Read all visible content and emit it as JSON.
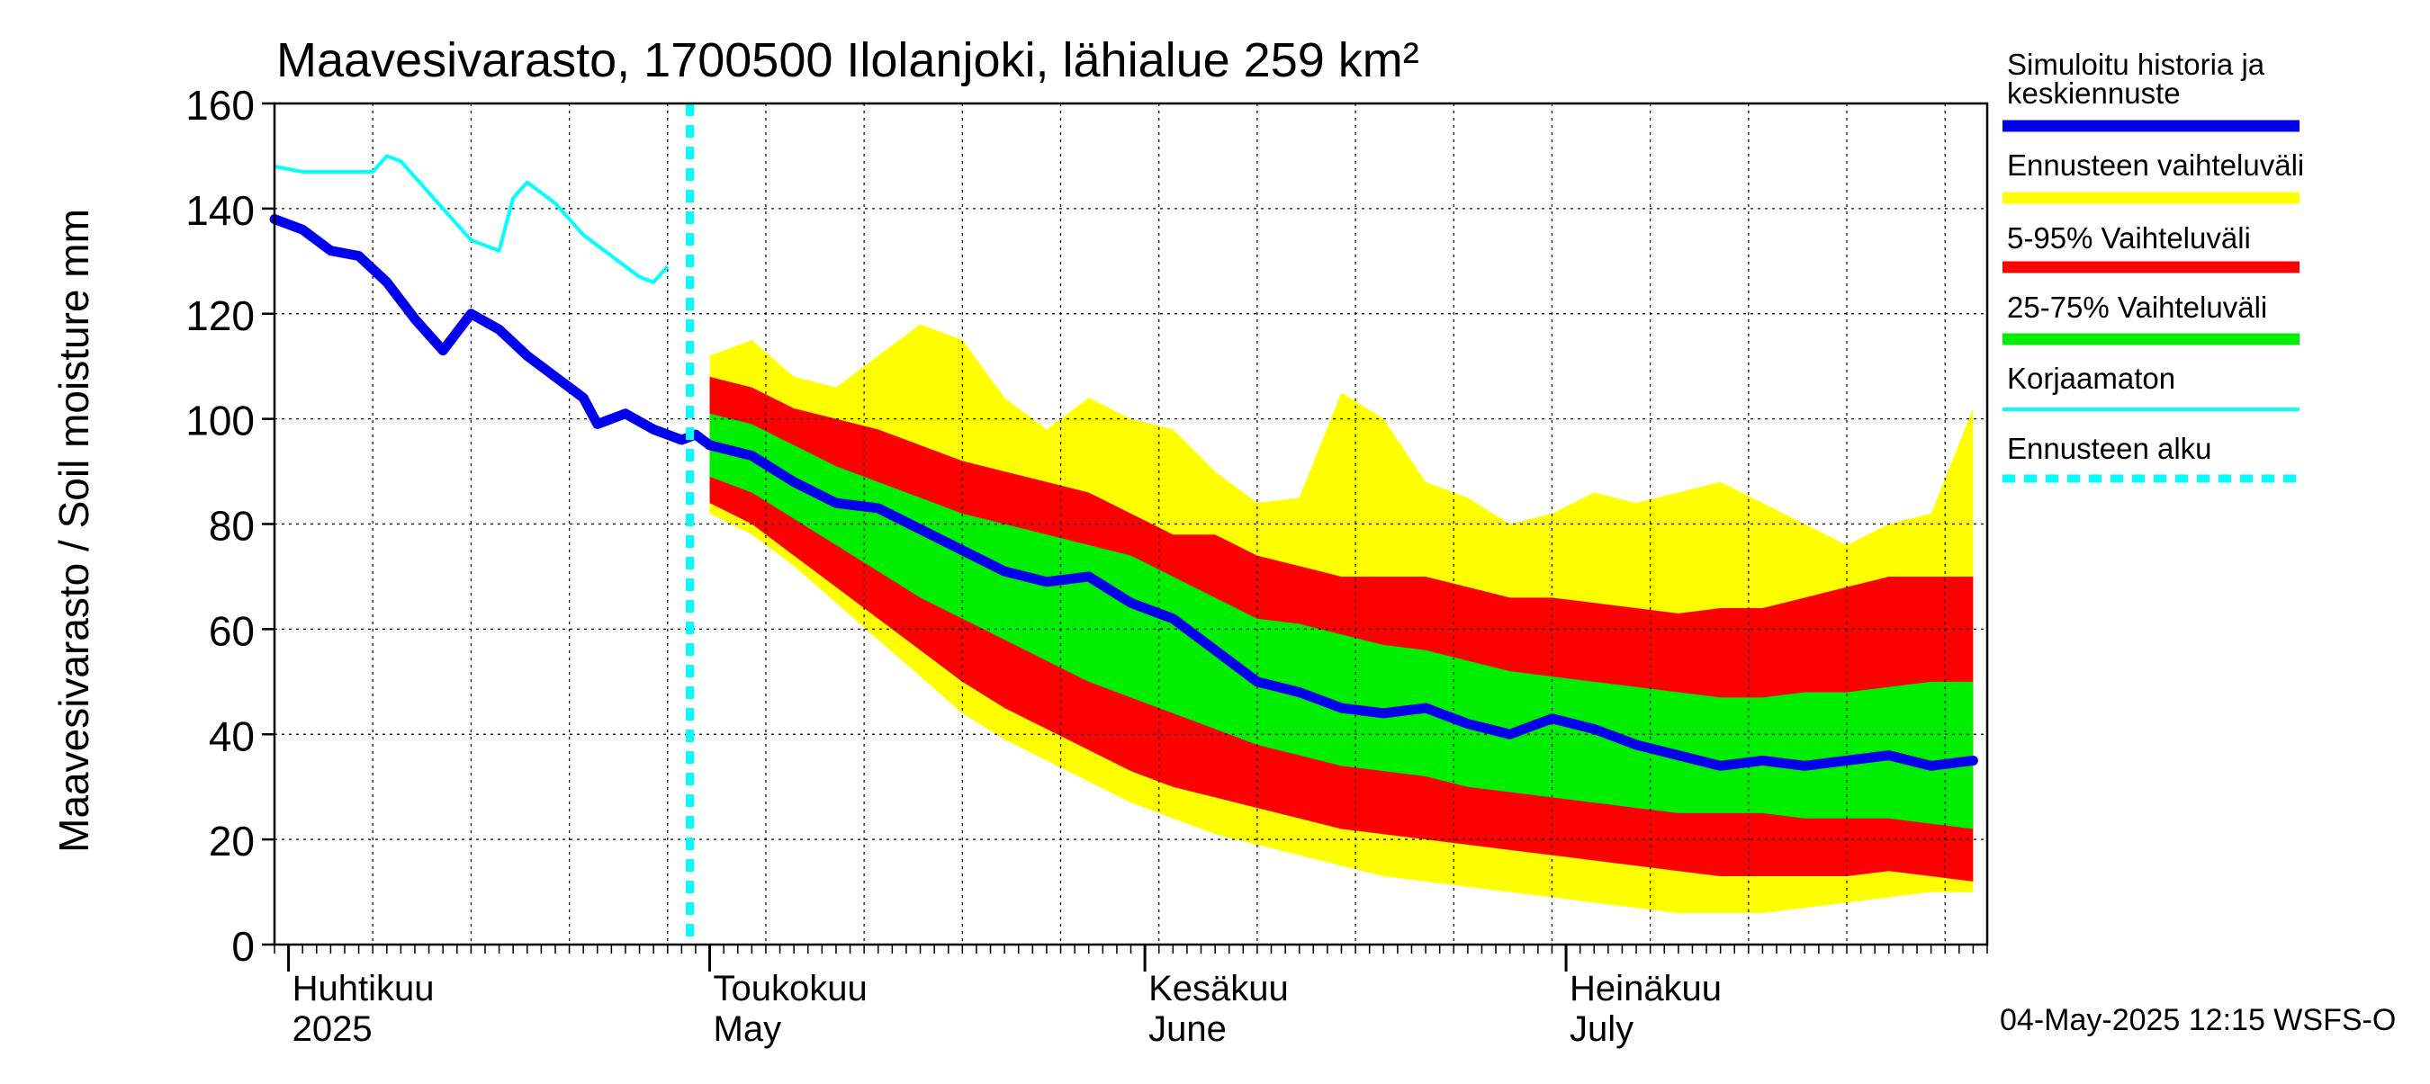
{
  "chart_data": {
    "type": "area",
    "title": "Maavesivarasto, 1700500 Ilolanjoki, lähialue 259 km²",
    "ylabel": "Maavesivarasto / Soil moisture   mm",
    "xlabel": "",
    "ylim": [
      0,
      160
    ],
    "yticks": [
      0,
      20,
      40,
      60,
      80,
      100,
      120,
      140,
      160
    ],
    "grid": true,
    "legend_position": "right",
    "x_range": [
      "2025-03-31",
      "2025-07-31"
    ],
    "month_labels": [
      {
        "date": "2025-04-01",
        "line1": "Huhtikuu",
        "line2": "2025"
      },
      {
        "date": "2025-05-01",
        "line1": "Toukokuu",
        "line2": "May"
      },
      {
        "date": "2025-06-01",
        "line1": "Kesäkuu",
        "line2": "June"
      },
      {
        "date": "2025-07-01",
        "line1": "Heinäkuu",
        "line2": "July"
      }
    ],
    "forecast_start": "2025-05-01",
    "footer": "04-May-2025 12:15 WSFS-O",
    "colors": {
      "simulated": "#0000ee",
      "range_full": "#ffff00",
      "range_5_95": "#ff0000",
      "range_25_75": "#00ee00",
      "uncorrected": "#00ffff",
      "forecast_start": "#00ffff"
    },
    "legend": [
      {
        "label": "Simuloitu historia ja keskiennuste",
        "lines": [
          "Simuloitu historia ja",
          "keskiennuste"
        ],
        "color": "#0000ee",
        "style": "thick"
      },
      {
        "label": "Ennusteen vaihteluväli",
        "lines": [
          "Ennusteen vaihteluväli"
        ],
        "color": "#ffff00",
        "style": "band"
      },
      {
        "label": "5-95% Vaihteluväli",
        "lines": [
          "5-95% Vaihteluväli"
        ],
        "color": "#ff0000",
        "style": "band"
      },
      {
        "label": "25-75% Vaihteluväli",
        "lines": [
          "25-75% Vaihteluväli"
        ],
        "color": "#00ee00",
        "style": "band"
      },
      {
        "label": "Korjaamaton",
        "lines": [
          "Korjaamaton"
        ],
        "color": "#00ffff",
        "style": "thin"
      },
      {
        "label": "Ennusteen alku",
        "lines": [
          "Ennusteen alku"
        ],
        "color": "#00ffff",
        "style": "dashed"
      }
    ],
    "series": [
      {
        "name": "Simuloitu historia ja keskiennuste",
        "role": "history",
        "x": [
          "2025-03-31",
          "2025-04-02",
          "2025-04-04",
          "2025-04-06",
          "2025-04-08",
          "2025-04-10",
          "2025-04-12",
          "2025-04-14",
          "2025-04-16",
          "2025-04-18",
          "2025-04-20",
          "2025-04-22",
          "2025-04-23",
          "2025-04-25",
          "2025-04-27",
          "2025-04-29",
          "2025-04-30",
          "2025-05-01"
        ],
        "y": [
          138,
          136,
          132,
          131,
          126,
          119,
          113,
          120,
          117,
          112,
          108,
          104,
          99,
          101,
          98,
          96,
          97,
          95
        ]
      },
      {
        "name": "Korjaamaton",
        "role": "uncorrected",
        "x": [
          "2025-03-31",
          "2025-04-02",
          "2025-04-04",
          "2025-04-07",
          "2025-04-08",
          "2025-04-09",
          "2025-04-10",
          "2025-04-12",
          "2025-04-14",
          "2025-04-16",
          "2025-04-17",
          "2025-04-18",
          "2025-04-20",
          "2025-04-22",
          "2025-04-24",
          "2025-04-26",
          "2025-04-27",
          "2025-04-28"
        ],
        "y": [
          148,
          147,
          147,
          147,
          150,
          149,
          146,
          140,
          134,
          132,
          142,
          145,
          141,
          135,
          131,
          127,
          126,
          129
        ]
      },
      {
        "name": "Simuloitu historia ja keskiennuste",
        "role": "forecast_median",
        "x": [
          "2025-05-01",
          "2025-05-04",
          "2025-05-07",
          "2025-05-10",
          "2025-05-13",
          "2025-05-16",
          "2025-05-19",
          "2025-05-22",
          "2025-05-25",
          "2025-05-28",
          "2025-05-31",
          "2025-06-03",
          "2025-06-06",
          "2025-06-09",
          "2025-06-12",
          "2025-06-15",
          "2025-06-18",
          "2025-06-21",
          "2025-06-24",
          "2025-06-27",
          "2025-06-30",
          "2025-07-03",
          "2025-07-06",
          "2025-07-09",
          "2025-07-12",
          "2025-07-15",
          "2025-07-18",
          "2025-07-21",
          "2025-07-24",
          "2025-07-27",
          "2025-07-30"
        ],
        "y": [
          95,
          93,
          88,
          84,
          83,
          79,
          75,
          71,
          69,
          70,
          65,
          62,
          56,
          50,
          48,
          45,
          44,
          45,
          42,
          40,
          43,
          41,
          38,
          36,
          34,
          35,
          34,
          35,
          36,
          34,
          35
        ]
      },
      {
        "name": "Ennusteen vaihteluväli",
        "role": "range_full",
        "x": [
          "2025-05-01",
          "2025-05-04",
          "2025-05-07",
          "2025-05-10",
          "2025-05-13",
          "2025-05-16",
          "2025-05-19",
          "2025-05-22",
          "2025-05-25",
          "2025-05-28",
          "2025-05-31",
          "2025-06-03",
          "2025-06-06",
          "2025-06-09",
          "2025-06-12",
          "2025-06-15",
          "2025-06-18",
          "2025-06-21",
          "2025-06-24",
          "2025-06-27",
          "2025-06-30",
          "2025-07-03",
          "2025-07-06",
          "2025-07-09",
          "2025-07-12",
          "2025-07-15",
          "2025-07-18",
          "2025-07-21",
          "2025-07-24",
          "2025-07-27",
          "2025-07-30"
        ],
        "low": [
          82,
          78,
          72,
          65,
          58,
          51,
          44,
          39,
          35,
          31,
          27,
          24,
          21,
          19,
          17,
          15,
          13,
          12,
          11,
          10,
          9,
          8,
          7,
          6,
          6,
          6,
          7,
          8,
          9,
          10,
          10
        ],
        "high": [
          112,
          115,
          108,
          106,
          112,
          118,
          115,
          104,
          98,
          104,
          100,
          98,
          90,
          84,
          85,
          105,
          100,
          88,
          85,
          80,
          82,
          86,
          84,
          86,
          88,
          84,
          80,
          76,
          80,
          82,
          102
        ]
      },
      {
        "name": "5-95% Vaihteluväli",
        "role": "range_5_95",
        "x": [
          "2025-05-01",
          "2025-05-04",
          "2025-05-07",
          "2025-05-10",
          "2025-05-13",
          "2025-05-16",
          "2025-05-19",
          "2025-05-22",
          "2025-05-25",
          "2025-05-28",
          "2025-05-31",
          "2025-06-03",
          "2025-06-06",
          "2025-06-09",
          "2025-06-12",
          "2025-06-15",
          "2025-06-18",
          "2025-06-21",
          "2025-06-24",
          "2025-06-27",
          "2025-06-30",
          "2025-07-03",
          "2025-07-06",
          "2025-07-09",
          "2025-07-12",
          "2025-07-15",
          "2025-07-18",
          "2025-07-21",
          "2025-07-24",
          "2025-07-27",
          "2025-07-30"
        ],
        "low": [
          84,
          80,
          74,
          68,
          62,
          56,
          50,
          45,
          41,
          37,
          33,
          30,
          28,
          26,
          24,
          22,
          21,
          20,
          19,
          18,
          17,
          16,
          15,
          14,
          13,
          13,
          13,
          13,
          14,
          13,
          12
        ],
        "high": [
          108,
          106,
          102,
          100,
          98,
          95,
          92,
          90,
          88,
          86,
          82,
          78,
          78,
          74,
          72,
          70,
          70,
          70,
          68,
          66,
          66,
          65,
          64,
          63,
          64,
          64,
          66,
          68,
          70,
          70,
          70
        ]
      },
      {
        "name": "25-75% Vaihteluväli",
        "role": "range_25_75",
        "x": [
          "2025-05-01",
          "2025-05-04",
          "2025-05-07",
          "2025-05-10",
          "2025-05-13",
          "2025-05-16",
          "2025-05-19",
          "2025-05-22",
          "2025-05-25",
          "2025-05-28",
          "2025-05-31",
          "2025-06-03",
          "2025-06-06",
          "2025-06-09",
          "2025-06-12",
          "2025-06-15",
          "2025-06-18",
          "2025-06-21",
          "2025-06-24",
          "2025-06-27",
          "2025-06-30",
          "2025-07-03",
          "2025-07-06",
          "2025-07-09",
          "2025-07-12",
          "2025-07-15",
          "2025-07-18",
          "2025-07-21",
          "2025-07-24",
          "2025-07-27",
          "2025-07-30"
        ],
        "low": [
          89,
          86,
          81,
          76,
          71,
          66,
          62,
          58,
          54,
          50,
          47,
          44,
          41,
          38,
          36,
          34,
          33,
          32,
          30,
          29,
          28,
          27,
          26,
          25,
          25,
          25,
          24,
          24,
          24,
          23,
          22
        ],
        "high": [
          101,
          99,
          95,
          91,
          88,
          85,
          82,
          80,
          78,
          76,
          74,
          70,
          66,
          62,
          61,
          59,
          57,
          56,
          54,
          52,
          51,
          50,
          49,
          48,
          47,
          47,
          48,
          48,
          49,
          50,
          50
        ]
      }
    ]
  }
}
